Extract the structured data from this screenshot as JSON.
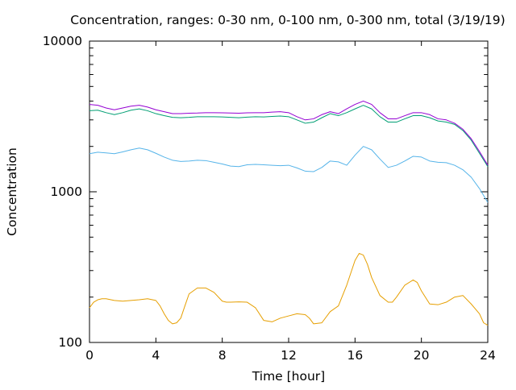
{
  "chart_data": {
    "type": "line",
    "title": "Concentration, ranges: 0-30 nm, 0-100 nm, 0-300 nm, total (3/19/19)",
    "xlabel": "Time [hour]",
    "ylabel": "Concentration",
    "xlim": [
      0,
      24
    ],
    "ylim": [
      100,
      10000
    ],
    "y_scale": "log",
    "grid": false,
    "legend": "none",
    "x_ticks": [
      0,
      4,
      8,
      12,
      16,
      20,
      24
    ],
    "x_tick_labels": [
      "0",
      "4",
      "8",
      "12",
      "16",
      "20",
      "24"
    ],
    "y_ticks": [
      100,
      1000,
      10000
    ],
    "y_tick_labels": [
      "100",
      "1000",
      "10000"
    ],
    "series": [
      {
        "color": "#e69f00",
        "x": [
          0,
          0.25,
          0.5,
          0.75,
          1,
          1.5,
          2,
          2.5,
          3,
          3.5,
          4,
          4.25,
          4.5,
          4.75,
          5,
          5.25,
          5.5,
          5.75,
          6,
          6.5,
          7,
          7.5,
          8,
          8.25,
          8.5,
          9,
          9.5,
          10,
          10.5,
          11,
          11.5,
          12,
          12.5,
          13,
          13.25,
          13.5,
          14,
          14.5,
          15,
          15.5,
          16,
          16.25,
          16.5,
          16.75,
          17,
          17.5,
          18,
          18.25,
          18.5,
          19,
          19.5,
          19.75,
          20,
          20.5,
          21,
          21.5,
          22,
          22.5,
          23,
          23.5,
          23.75,
          24
        ],
        "values": [
          170,
          185,
          192,
          195,
          195,
          190,
          188,
          190,
          192,
          195,
          190,
          175,
          155,
          140,
          133,
          135,
          145,
          175,
          210,
          230,
          230,
          215,
          188,
          185,
          185,
          186,
          185,
          170,
          140,
          137,
          145,
          150,
          155,
          153,
          145,
          133,
          135,
          160,
          175,
          240,
          350,
          390,
          380,
          330,
          270,
          205,
          185,
          185,
          200,
          240,
          260,
          250,
          220,
          180,
          178,
          185,
          200,
          205,
          180,
          155,
          135,
          130
        ]
      },
      {
        "color": "#56b4e9",
        "x": [
          0,
          0.5,
          1,
          1.5,
          2,
          2.5,
          3,
          3.5,
          4,
          4.5,
          5,
          5.5,
          6,
          6.5,
          7,
          7.5,
          8,
          8.5,
          9,
          9.5,
          10,
          10.5,
          11,
          11.5,
          12,
          12.5,
          13,
          13.5,
          14,
          14.5,
          15,
          15.5,
          16,
          16.5,
          17,
          17.5,
          18,
          18.5,
          19,
          19.5,
          20,
          20.5,
          21,
          21.5,
          22,
          22.5,
          23,
          23.5,
          24
        ],
        "values": [
          1790,
          1830,
          1810,
          1790,
          1840,
          1900,
          1950,
          1900,
          1800,
          1700,
          1620,
          1590,
          1600,
          1620,
          1610,
          1570,
          1530,
          1480,
          1470,
          1510,
          1520,
          1510,
          1500,
          1490,
          1500,
          1440,
          1370,
          1360,
          1450,
          1600,
          1580,
          1500,
          1750,
          2000,
          1900,
          1650,
          1450,
          1500,
          1600,
          1720,
          1700,
          1600,
          1570,
          1560,
          1500,
          1400,
          1250,
          1050,
          850
        ]
      },
      {
        "color": "#009e73",
        "x": [
          0,
          0.5,
          1,
          1.5,
          2,
          2.5,
          3,
          3.5,
          4,
          4.5,
          5,
          5.5,
          6,
          6.5,
          7,
          7.5,
          8,
          8.5,
          9,
          9.5,
          10,
          10.5,
          11,
          11.5,
          12,
          12.5,
          13,
          13.5,
          14,
          14.5,
          15,
          15.5,
          16,
          16.5,
          17,
          17.5,
          18,
          18.5,
          19,
          19.5,
          20,
          20.5,
          21,
          21.5,
          22,
          22.5,
          23,
          23.5,
          24
        ],
        "values": [
          3450,
          3480,
          3350,
          3250,
          3350,
          3480,
          3550,
          3450,
          3300,
          3200,
          3120,
          3100,
          3120,
          3150,
          3150,
          3150,
          3140,
          3120,
          3100,
          3130,
          3150,
          3140,
          3160,
          3180,
          3150,
          3000,
          2850,
          2900,
          3100,
          3300,
          3200,
          3350,
          3550,
          3750,
          3550,
          3150,
          2900,
          2900,
          3050,
          3200,
          3200,
          3100,
          2950,
          2900,
          2800,
          2550,
          2200,
          1800,
          1470
        ]
      },
      {
        "color": "#9400d3",
        "x": [
          0,
          0.5,
          1,
          1.5,
          2,
          2.5,
          3,
          3.5,
          4,
          4.5,
          5,
          5.5,
          6,
          6.5,
          7,
          7.5,
          8,
          8.5,
          9,
          9.5,
          10,
          10.5,
          11,
          11.5,
          12,
          12.5,
          13,
          13.5,
          14,
          14.5,
          15,
          15.5,
          16,
          16.5,
          17,
          17.5,
          18,
          18.5,
          19,
          19.5,
          20,
          20.5,
          21,
          21.5,
          22,
          22.5,
          23,
          23.5,
          24
        ],
        "values": [
          3800,
          3750,
          3600,
          3500,
          3600,
          3700,
          3750,
          3650,
          3500,
          3400,
          3300,
          3300,
          3320,
          3330,
          3350,
          3350,
          3340,
          3330,
          3320,
          3340,
          3350,
          3350,
          3380,
          3400,
          3350,
          3150,
          3000,
          3050,
          3250,
          3400,
          3300,
          3550,
          3800,
          4000,
          3800,
          3350,
          3050,
          3050,
          3200,
          3350,
          3350,
          3250,
          3050,
          3000,
          2850,
          2600,
          2250,
          1850,
          1500
        ]
      }
    ]
  }
}
